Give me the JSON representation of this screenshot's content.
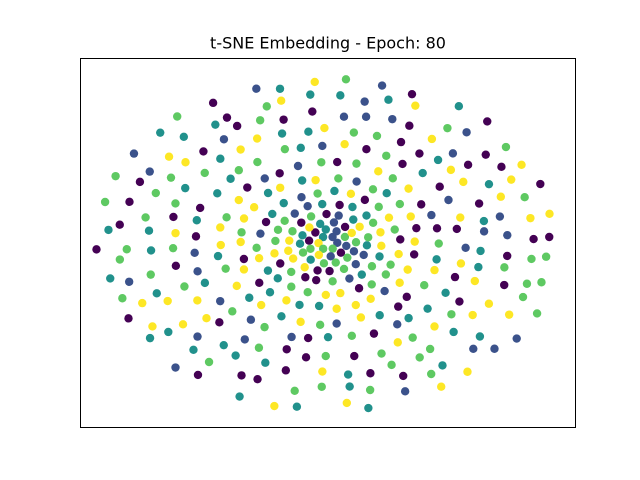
{
  "chart_data": {
    "type": "scatter",
    "title": "t-SNE Embedding -  Epoch: 80",
    "xlabel": "",
    "ylabel": "",
    "xlim": [
      -1.0,
      1.0
    ],
    "ylim": [
      -1.0,
      1.0
    ],
    "axes_ticks_visible": false,
    "grid": false,
    "legend": "none",
    "colors": {
      "class_0": "#440154",
      "class_1": "#3b528b",
      "class_2": "#21918c",
      "class_3": "#5ec962",
      "class_4": "#fde725"
    },
    "layout_pattern": "concentric elliptical rings of points with a dense cluster at the center",
    "rings": [
      {
        "radius": 0.04,
        "count": 6
      },
      {
        "radius": 0.08,
        "count": 10
      },
      {
        "radius": 0.12,
        "count": 14
      },
      {
        "radius": 0.17,
        "count": 18
      },
      {
        "radius": 0.23,
        "count": 22
      },
      {
        "radius": 0.3,
        "count": 26
      },
      {
        "radius": 0.38,
        "count": 30
      },
      {
        "radius": 0.47,
        "count": 34
      },
      {
        "radius": 0.57,
        "count": 38
      },
      {
        "radius": 0.67,
        "count": 42
      },
      {
        "radius": 0.77,
        "count": 44
      },
      {
        "radius": 0.87,
        "count": 46
      },
      {
        "radius": 0.96,
        "count": 40
      }
    ]
  }
}
